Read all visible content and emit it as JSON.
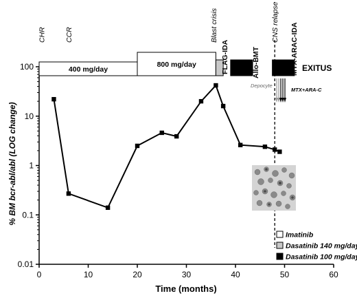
{
  "chart_data": {
    "type": "line",
    "xlabel": "Time (months)",
    "ylabel": "% BM bcr-abl/abl (LOG change)",
    "xlim": [
      0,
      60
    ],
    "ylim": [
      0.01,
      100
    ],
    "y_scale": "log",
    "x_ticks": [
      "0",
      "10",
      "20",
      "30",
      "40",
      "50",
      "60"
    ],
    "y_ticks": [
      "0.01",
      "0.1",
      "1",
      "10",
      "100"
    ],
    "series": [
      {
        "x": [
          3,
          6,
          14,
          20,
          25,
          28,
          33,
          36,
          37.5,
          41,
          46,
          48,
          49
        ],
        "y": [
          22,
          0.27,
          0.14,
          2.5,
          4.6,
          3.9,
          20,
          42,
          16,
          2.6,
          2.4,
          2.1,
          1.9
        ]
      }
    ],
    "top_labels": [
      {
        "text": "CHR",
        "x": 0.5
      },
      {
        "text": "CCR",
        "x": 6
      },
      {
        "text": "Blast crisis",
        "x": 35.5
      },
      {
        "text": "CNS relapse",
        "x": 48
      }
    ],
    "treatment_bars": [
      {
        "label": "400 mg/day",
        "x0": 0,
        "x1": 20,
        "fill": "imatinib"
      },
      {
        "label": "800 mg/day",
        "x0": 20,
        "x1": 36,
        "fill": "imatinib"
      },
      {
        "label": "",
        "x0": 36,
        "x1": 37.5,
        "fill": "dasatinib140"
      },
      {
        "label": "",
        "x0": 39,
        "x1": 43.5,
        "fill": "dasatinib100"
      },
      {
        "label": "",
        "x0": 47.5,
        "x1": 52,
        "fill": "dasatinib100"
      }
    ],
    "bar_annotations": {
      "flag_ida": "FLAG-IDA",
      "allo_bmt": "Allo-BMT",
      "mtx_arac_ida": "MTX-ARAC-IDA",
      "exitus": "EXITUS",
      "depocyte": "Depocyte",
      "mtx_arac": "MTX+ARA-C"
    },
    "vertical_line_x": 48,
    "legend": [
      {
        "label": "Imatinib",
        "fill": "imatinib"
      },
      {
        "label": "Dasatinib 140 mg/day",
        "fill": "dasatinib140"
      },
      {
        "label": "Dasatinib 100 mg/day",
        "fill": "dasatinib100"
      }
    ],
    "legend_position": "bottom-right",
    "colors": {
      "imatinib": "#ffffff",
      "dasatinib140": "#c8c8c8",
      "dasatinib100": "#000000",
      "line": "#000000"
    },
    "grid": false
  }
}
